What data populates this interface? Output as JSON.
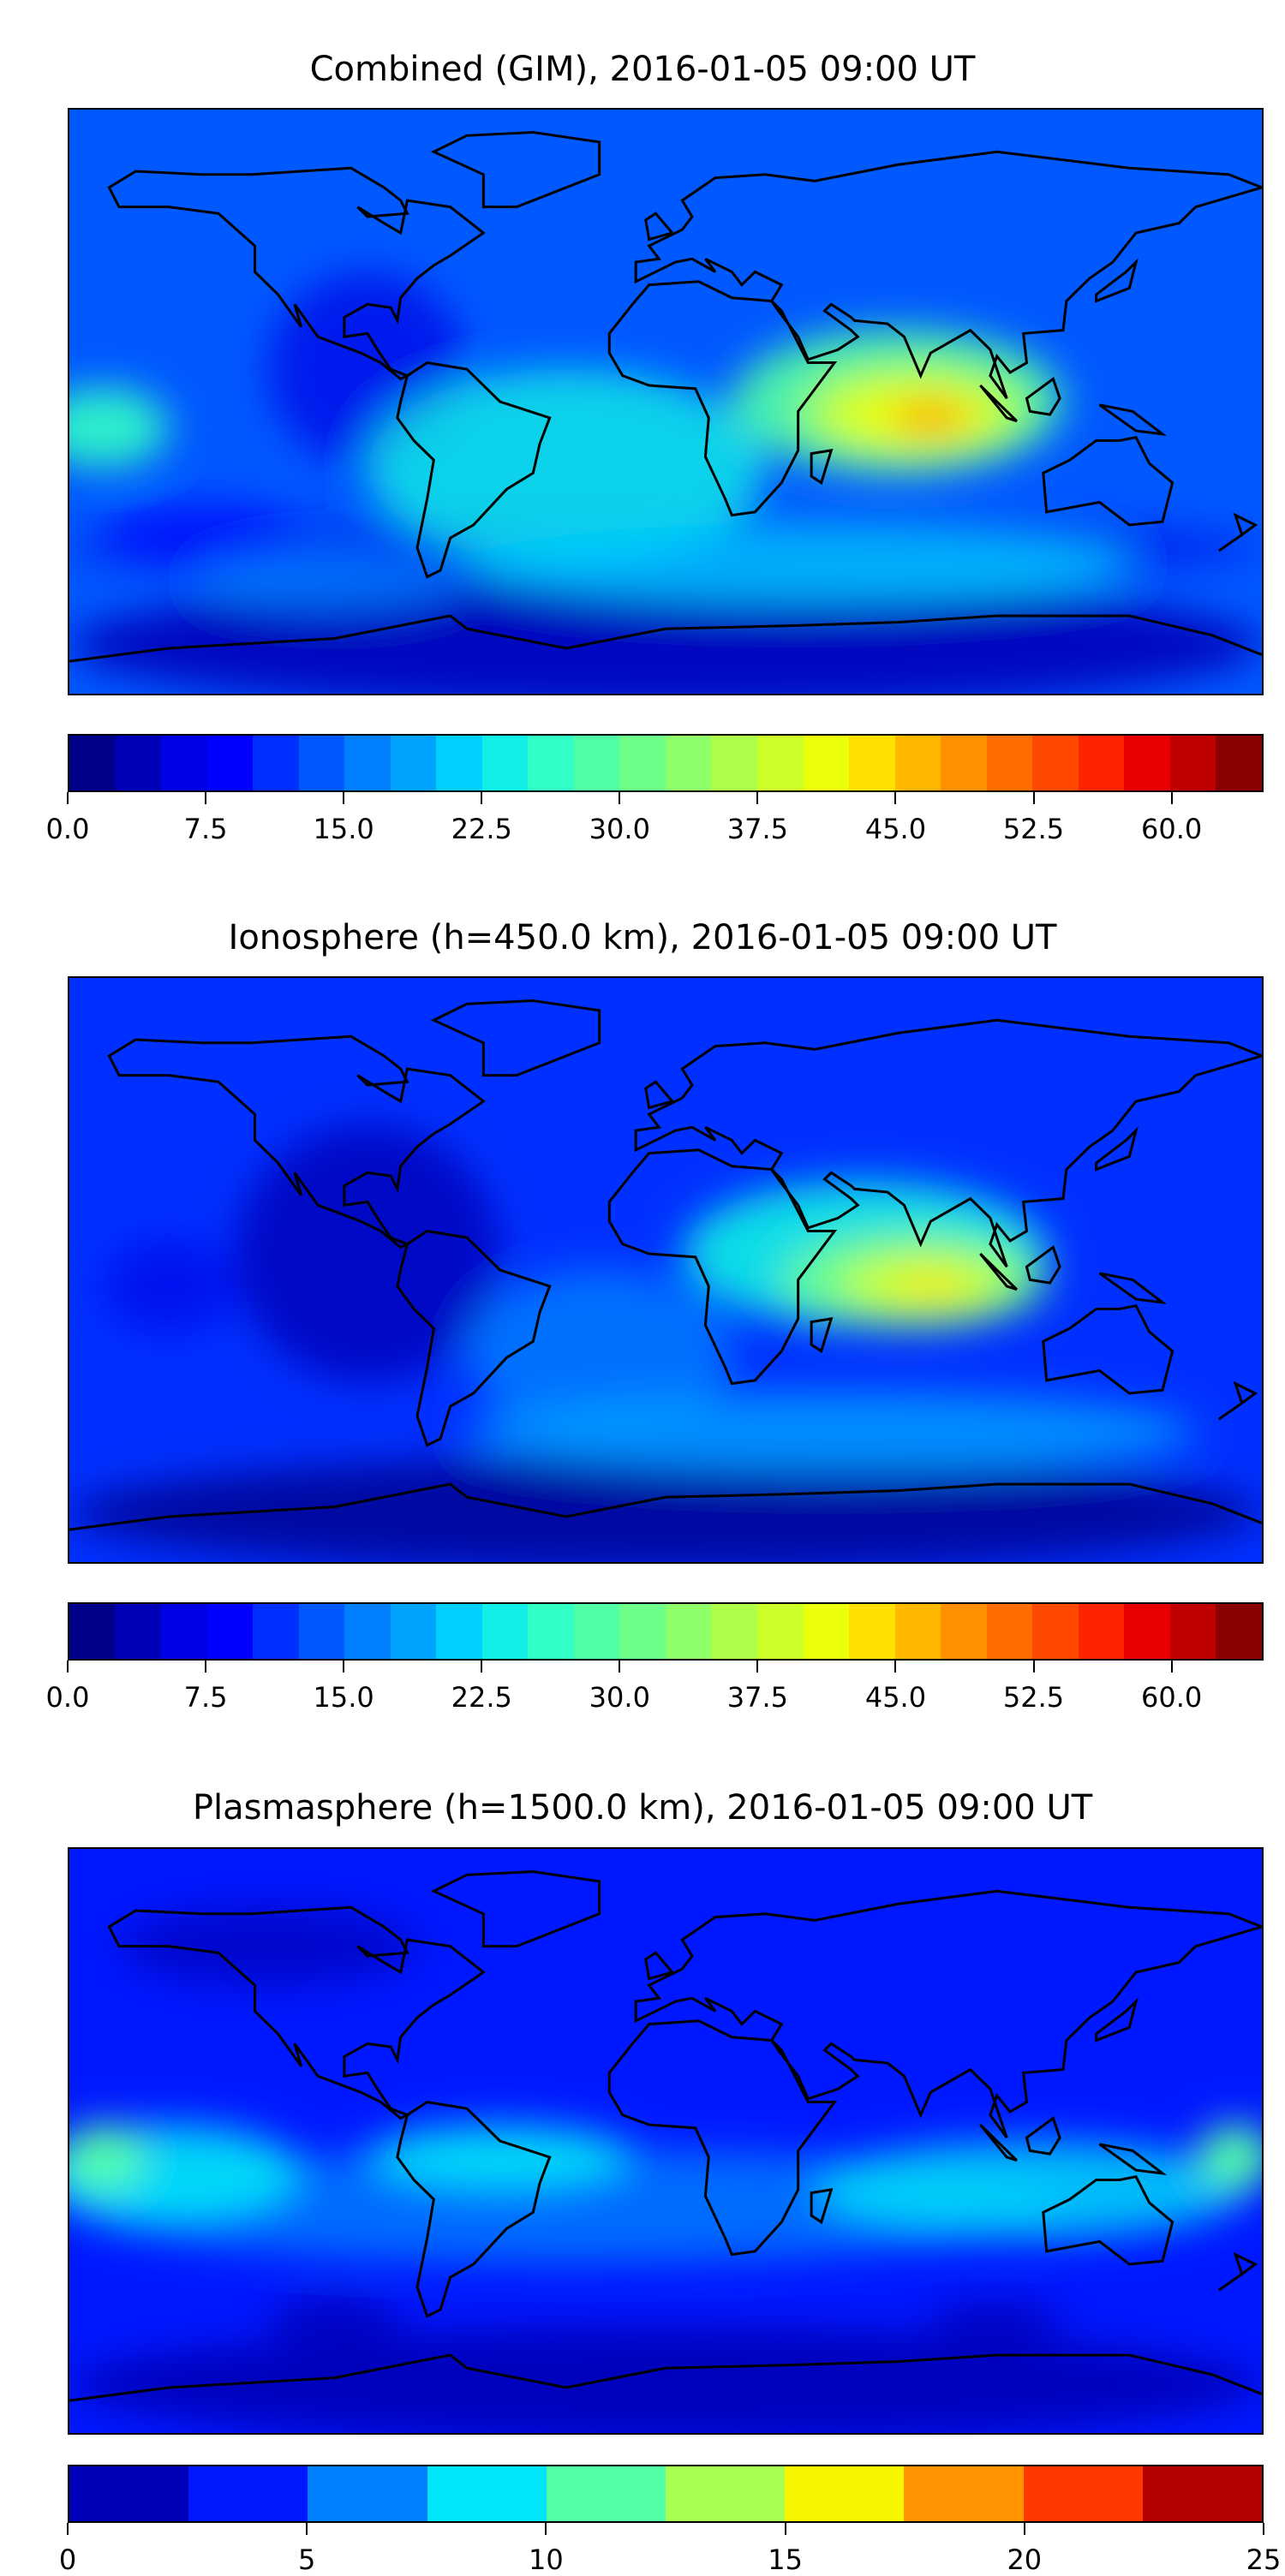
{
  "chart_data": [
    {
      "type": "heatmap",
      "title": "Combined (GIM), 2016-01-05 09:00 UT",
      "projection": "equirectangular, lon -180..180, lat -90..90",
      "colorbar": {
        "range": [
          0,
          65
        ],
        "step": 2.5,
        "ticks": [
          "0.0",
          "7.5",
          "15.0",
          "22.5",
          "30.0",
          "37.5",
          "45.0",
          "52.5",
          "60.0"
        ],
        "tick_values": [
          0,
          7.5,
          15,
          22.5,
          30,
          37.5,
          45,
          52.5,
          60
        ]
      },
      "features": {
        "max_region": "Indian Ocean near lon 80, lat -5, ~50",
        "background": "~10-20",
        "high_north_latitudes": "~5"
      }
    },
    {
      "type": "heatmap",
      "title": "Ionosphere  (h=450.0 km), 2016-01-05 09:00 UT",
      "projection": "equirectangular, lon -180..180, lat -90..90",
      "colorbar": {
        "range": [
          0,
          65
        ],
        "step": 2.5,
        "ticks": [
          "0.0",
          "7.5",
          "15.0",
          "22.5",
          "30.0",
          "37.5",
          "45.0",
          "52.5",
          "60.0"
        ],
        "tick_values": [
          0,
          7.5,
          15,
          22.5,
          30,
          37.5,
          45,
          52.5,
          60
        ]
      },
      "features": {
        "max_region": "Indian Ocean near lon 80, lat -5, ~42",
        "background": "~5-15"
      }
    },
    {
      "type": "heatmap",
      "title": "Plasmasphere (h=1500.0 km), 2016-01-05 09:00 UT",
      "projection": "equirectangular, lon -180..180, lat -90..90",
      "colorbar": {
        "range": [
          0,
          25
        ],
        "step": 2.5,
        "ticks": [
          "0",
          "5",
          "10",
          "15",
          "20",
          "25"
        ],
        "tick_values": [
          0,
          5,
          10,
          15,
          20,
          25
        ]
      },
      "features": {
        "max_region": "~10-12.5 near lon -175 lat -10 and lon 170 lat -5",
        "background": "~2.5-7.5"
      }
    }
  ],
  "colors": {
    "jet26": [
      "#00008b",
      "#0000b8",
      "#0000e6",
      "#0000ff",
      "#0030ff",
      "#0058ff",
      "#0080ff",
      "#00a4ff",
      "#00d0ff",
      "#10f0e6",
      "#30ffc6",
      "#50ffa6",
      "#6eff88",
      "#8eff68",
      "#adff49",
      "#ccff2a",
      "#ecff0a",
      "#ffe000",
      "#ffb800",
      "#ff9000",
      "#ff6c00",
      "#ff4800",
      "#ff2400",
      "#e80000",
      "#c00000",
      "#8b0000"
    ],
    "jet10": [
      "#0000b8",
      "#0018ff",
      "#0080ff",
      "#00e5f8",
      "#54ffa8",
      "#a8ff50",
      "#f8f500",
      "#ff9400",
      "#ff3800",
      "#b40000"
    ]
  }
}
